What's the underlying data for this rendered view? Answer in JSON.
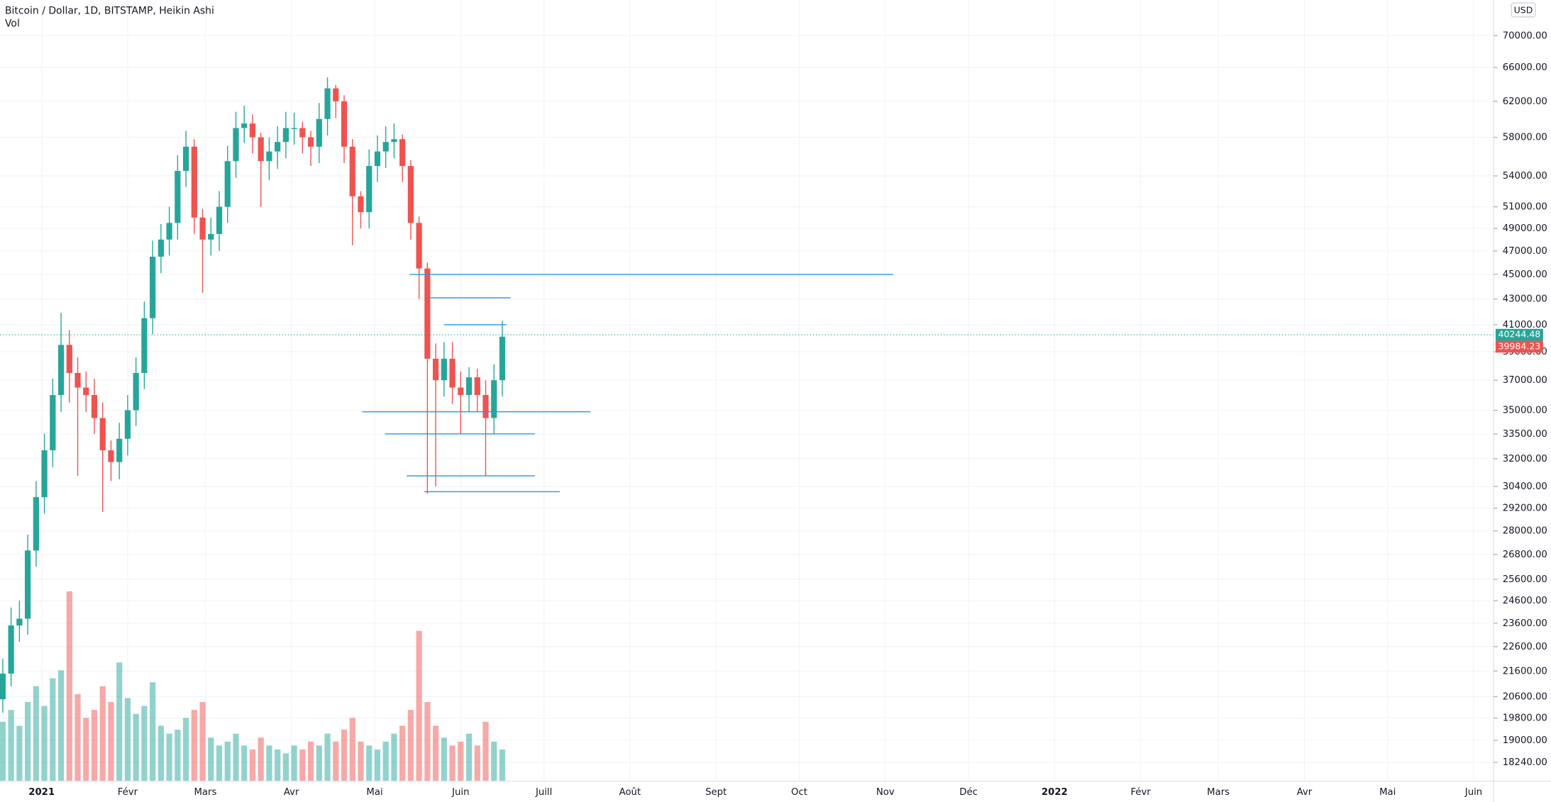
{
  "chart_data": {
    "type": "candlestick",
    "title": "Bitcoin / Dollar, 1D, BITSTAMP, Heikin Ashi",
    "volume_label": "Vol",
    "currency": "USD",
    "log_scale": true,
    "grid": true,
    "up_color": "#26a69a",
    "down_color": "#ef5350",
    "line_color": "#2196f3",
    "ylim": [
      17620,
      74760
    ],
    "yticks": [
      {
        "value": 70000,
        "label": "70000.00"
      },
      {
        "value": 66000,
        "label": "66000.00"
      },
      {
        "value": 62000,
        "label": "62000.00"
      },
      {
        "value": 58000,
        "label": "58000.00"
      },
      {
        "value": 54000,
        "label": "54000.00"
      },
      {
        "value": 51000,
        "label": "51000.00"
      },
      {
        "value": 49000,
        "label": "49000.00"
      },
      {
        "value": 47000,
        "label": "47000.00"
      },
      {
        "value": 45000,
        "label": "45000.00"
      },
      {
        "value": 43000,
        "label": "43000.00"
      },
      {
        "value": 41000,
        "label": "41000.00"
      },
      {
        "value": 39000,
        "label": "39000.00"
      },
      {
        "value": 37000,
        "label": "37000.00"
      },
      {
        "value": 35000,
        "label": "35000.00"
      },
      {
        "value": 33500,
        "label": "33500.00"
      },
      {
        "value": 32000,
        "label": "32000.00"
      },
      {
        "value": 30400,
        "label": "30400.00"
      },
      {
        "value": 29200,
        "label": "29200.00"
      },
      {
        "value": 28000,
        "label": "28000.00"
      },
      {
        "value": 26800,
        "label": "26800.00"
      },
      {
        "value": 25600,
        "label": "25600.00"
      },
      {
        "value": 24600,
        "label": "24600.00"
      },
      {
        "value": 23600,
        "label": "23600.00"
      },
      {
        "value": 22600,
        "label": "22600.00"
      },
      {
        "value": 21600,
        "label": "21600.00"
      },
      {
        "value": 20600,
        "label": "20600.00"
      },
      {
        "value": 19800,
        "label": "19800.00"
      },
      {
        "value": 19000,
        "label": "19000.00"
      },
      {
        "value": 18240,
        "label": "18240.00"
      }
    ],
    "xlim": [
      -15,
      523.2
    ],
    "xticks": [
      {
        "value": 0,
        "label": "2021"
      },
      {
        "value": 31,
        "label": "Févr"
      },
      {
        "value": 59,
        "label": "Mars"
      },
      {
        "value": 90,
        "label": "Avr"
      },
      {
        "value": 120,
        "label": "Mai"
      },
      {
        "value": 151,
        "label": "Juin"
      },
      {
        "value": 181,
        "label": "Juill"
      },
      {
        "value": 212,
        "label": "Août"
      },
      {
        "value": 243,
        "label": "Sept"
      },
      {
        "value": 273,
        "label": "Oct"
      },
      {
        "value": 304,
        "label": "Nov"
      },
      {
        "value": 334,
        "label": "Déc"
      },
      {
        "value": 365,
        "label": "2022"
      },
      {
        "value": 396,
        "label": "Févr"
      },
      {
        "value": 424,
        "label": "Mars"
      },
      {
        "value": 455,
        "label": "Avr"
      },
      {
        "value": 485,
        "label": "Mai"
      },
      {
        "value": 516,
        "label": "Juin"
      }
    ],
    "x": [
      -14,
      -11,
      -8,
      -5,
      -2,
      1,
      4,
      7,
      10,
      13,
      16,
      19,
      22,
      25,
      28,
      31,
      34,
      37,
      40,
      43,
      46,
      49,
      52,
      55,
      58,
      61,
      64,
      67,
      70,
      73,
      76,
      79,
      82,
      85,
      88,
      91,
      94,
      97,
      100,
      103,
      106,
      109,
      112,
      115,
      118,
      121,
      124,
      127,
      130,
      133,
      136,
      139,
      142,
      145,
      148,
      151,
      154,
      157,
      160,
      163,
      166
    ],
    "open": [
      20500,
      21500,
      23500,
      23800,
      27000,
      29800,
      32500,
      36000,
      39500,
      37500,
      36500,
      36000,
      34500,
      32500,
      31800,
      33200,
      35000,
      37500,
      41500,
      46500,
      48000,
      49500,
      54500,
      57000,
      50000,
      48000,
      48500,
      51000,
      55500,
      59000,
      59500,
      58000,
      55500,
      56500,
      57500,
      59000,
      59000,
      58000,
      57000,
      60000,
      63500,
      62000,
      57000,
      52000,
      50500,
      55000,
      56500,
      57500,
      57800,
      55000,
      49500,
      45500,
      38500,
      37000,
      38500,
      36500,
      36000,
      37200,
      36000,
      34500,
      37000
    ],
    "high": [
      22100,
      24300,
      24600,
      27800,
      30700,
      33500,
      37100,
      41900,
      40600,
      38600,
      37600,
      37100,
      35500,
      33100,
      34200,
      36000,
      38600,
      42800,
      47900,
      49400,
      51000,
      56100,
      58700,
      57800,
      50800,
      50000,
      52500,
      57100,
      60800,
      61500,
      60500,
      58500,
      58000,
      59200,
      60800,
      60700,
      59700,
      58700,
      61800,
      64800,
      63900,
      62700,
      57800,
      52500,
      56700,
      58200,
      59200,
      59500,
      58300,
      55600,
      50100,
      46000,
      39600,
      39700,
      39700,
      37600,
      37900,
      37800,
      37000,
      38100,
      41300
    ],
    "low": [
      20000,
      21000,
      22800,
      23100,
      26200,
      28900,
      31500,
      34900,
      35500,
      31000,
      34900,
      33500,
      29000,
      30700,
      30800,
      32200,
      34000,
      36400,
      40300,
      45100,
      46600,
      48000,
      52900,
      48500,
      43500,
      46600,
      47000,
      49500,
      53800,
      57400,
      56300,
      51000,
      53600,
      54700,
      55800,
      57200,
      56300,
      55000,
      55300,
      58200,
      60100,
      55300,
      47500,
      49000,
      49000,
      53400,
      54800,
      55800,
      53400,
      48000,
      43000,
      30000,
      30400,
      35900,
      35400,
      33500,
      34900,
      34900,
      31000,
      33500,
      35900
    ],
    "close": [
      21500,
      23500,
      23800,
      27000,
      29800,
      32500,
      36000,
      39500,
      37500,
      36500,
      36000,
      34500,
      32500,
      31800,
      33200,
      35000,
      37500,
      41500,
      46500,
      48000,
      49500,
      54500,
      57000,
      50000,
      48000,
      48500,
      51000,
      55500,
      59000,
      59500,
      58000,
      55500,
      56500,
      57500,
      59000,
      59000,
      58000,
      57000,
      60000,
      63500,
      62000,
      57000,
      52000,
      50500,
      55000,
      56500,
      57500,
      57800,
      55000,
      49500,
      45500,
      38500,
      37000,
      38500,
      36500,
      36000,
      37200,
      36000,
      34500,
      37000,
      40100
    ],
    "volume": [
      15000,
      18000,
      14000,
      20000,
      24000,
      19000,
      26000,
      28000,
      48000,
      22000,
      16000,
      18000,
      24000,
      20000,
      30000,
      21000,
      17000,
      19000,
      25000,
      14000,
      12000,
      13000,
      16000,
      18000,
      20000,
      11000,
      9000,
      10000,
      12000,
      9000,
      8000,
      11000,
      9000,
      8000,
      7000,
      9000,
      8000,
      10000,
      9000,
      12000,
      10000,
      13000,
      16000,
      10000,
      9000,
      8000,
      10000,
      12000,
      14000,
      18000,
      38000,
      20000,
      14000,
      11000,
      9000,
      10000,
      12000,
      9000,
      15000,
      10000,
      8000
    ],
    "volume_ylim": [
      0,
      60000
    ],
    "hlines": [
      {
        "y": 45000,
        "x": [
          132.6,
          306.8
        ]
      },
      {
        "y": 43100,
        "x": [
          139,
          169
        ]
      },
      {
        "y": 41000,
        "x": [
          145,
          167.5
        ]
      },
      {
        "y": 34900,
        "x": [
          115.5,
          197.8
        ]
      },
      {
        "y": 33500,
        "x": [
          123.7,
          177.8
        ]
      },
      {
        "y": 31000,
        "x": [
          131.5,
          177.8
        ]
      },
      {
        "y": 30100,
        "x": [
          137.9,
          186.7
        ]
      }
    ],
    "price_labels": [
      {
        "value": 40244.48,
        "color": "#26a69a"
      },
      {
        "value": 39984.23,
        "color": "#ef5350"
      }
    ]
  }
}
